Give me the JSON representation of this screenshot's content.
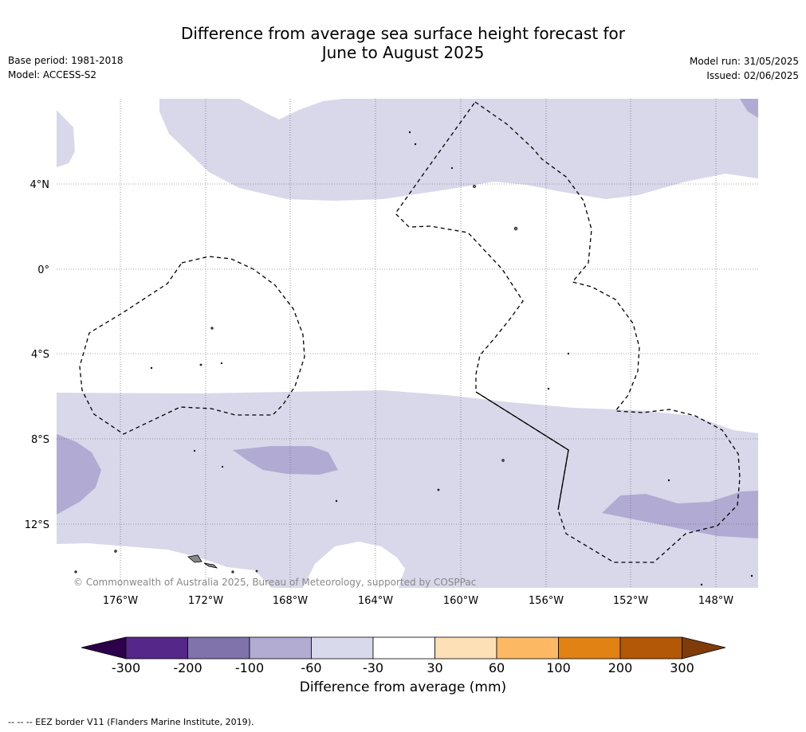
{
  "title_line1": "Difference from average sea surface height forecast for",
  "title_line2": "June to August 2025",
  "left_meta": {
    "base_period": "Base period: 1981-2018",
    "model": "Model: ACCESS-S2"
  },
  "right_meta": {
    "model_run": "Model run: 31/05/2025",
    "issued": "Issued: 02/06/2025"
  },
  "map": {
    "lat_labels": [
      "4°N",
      "0°",
      "4°S",
      "8°S",
      "12°S"
    ],
    "lon_labels": [
      "176°W",
      "172°W",
      "168°W",
      "164°W",
      "160°W",
      "156°W",
      "152°W",
      "148°W"
    ],
    "credit": "© Commonwealth of Australia 2025, Bureau of Meteorology, supported by COSPPac",
    "colors": {
      "light_lavender": "#d8d8ea",
      "medium_lavender": "#b1abd3",
      "land": "#888888"
    }
  },
  "colorbar": {
    "ticks": [
      "-300",
      "-200",
      "-100",
      "-60",
      "-30",
      "30",
      "60",
      "100",
      "200",
      "300"
    ],
    "colors": [
      "#2d004b",
      "#542788",
      "#8073ac",
      "#b2abd2",
      "#d8daeb",
      "#ffffff",
      "#fee0b6",
      "#fdb863",
      "#e08214",
      "#b35806",
      "#7f3b08"
    ],
    "label": "Difference from average (mm)"
  },
  "footnote": "--  --  -- EEZ border V11 (Flanders Marine Institute, 2019)."
}
